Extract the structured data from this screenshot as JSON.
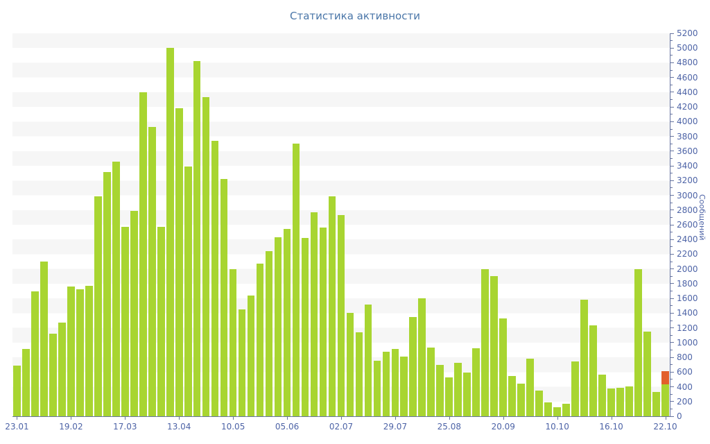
{
  "title": "Статистика активности",
  "y_axis": {
    "label": "Сообщений",
    "min": 0,
    "max": 5200,
    "step": 200,
    "tick_labels": [
      "0",
      "200",
      "400",
      "600",
      "800",
      "1000",
      "1200",
      "1400",
      "1600",
      "1800",
      "2000",
      "2200",
      "2400",
      "2600",
      "2800",
      "3000",
      "3200",
      "3400",
      "3600",
      "3800",
      "4000",
      "4200",
      "4400",
      "4600",
      "4800",
      "5000",
      "5200"
    ]
  },
  "x_axis": {
    "tick_labels": [
      "23.01",
      "19.02",
      "17.03",
      "13.04",
      "10.05",
      "05.06",
      "02.07",
      "29.07",
      "25.08",
      "20.09",
      "10.10",
      "16.10",
      "22.10"
    ],
    "bars_per_tick": 6
  },
  "chart_data": {
    "type": "bar",
    "title": "Статистика активности",
    "ylabel": "Сообщений",
    "ylim": [
      0,
      5200
    ],
    "grid": "striped-horizontal",
    "legend": "none",
    "x_tick_labels": [
      "23.01",
      "19.02",
      "17.03",
      "13.04",
      "10.05",
      "05.06",
      "02.07",
      "29.07",
      "25.08",
      "20.09",
      "10.10",
      "16.10",
      "22.10"
    ],
    "values": [
      690,
      910,
      1700,
      2100,
      1120,
      1270,
      1760,
      1725,
      1775,
      2990,
      3320,
      3460,
      2570,
      2790,
      4400,
      3930,
      2570,
      5000,
      4180,
      3390,
      4820,
      4330,
      3740,
      3220,
      2000,
      1450,
      1640,
      2070,
      2240,
      2430,
      2540,
      3700,
      2420,
      2770,
      2560,
      2990,
      2730,
      1400,
      1140,
      1520,
      750,
      880,
      915,
      810,
      1350,
      1600,
      930,
      700,
      530,
      730,
      590,
      925,
      2000,
      1900,
      1330,
      550,
      440,
      780,
      350,
      190,
      120,
      170,
      740,
      1580,
      1230,
      570,
      380,
      385,
      405,
      2000,
      1150,
      330,
      430
    ],
    "highlight_last_bar": {
      "from": 430,
      "to": 610
    }
  },
  "colors": {
    "bar": "#a8d531",
    "highlight": "#e25f2b",
    "axis": "#65739f",
    "tick_text": "#4d63a6",
    "title_text": "#4a76a8",
    "stripe": "#f6f6f6",
    "background": "#ffffff"
  }
}
